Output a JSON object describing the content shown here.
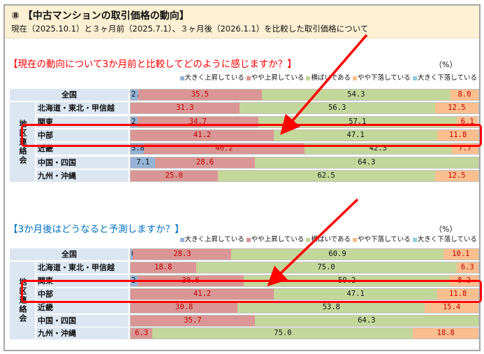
{
  "header": {
    "title": "⑧ 【中古マンションの取引価格の動向】",
    "subtitle": "現在（2025.10.1）と３ヶ月前（2025.7.1）、３ヶ月後（2026.1.1）を比較した取引価格について"
  },
  "colors": {
    "大きく上昇している": "#95b3d7",
    "やや上昇している": "#da9694",
    "横ばいである": "#c4d79b",
    "やや下落している": "#fabf8f",
    "大きく下落している": "#93cddd",
    "label_red": "#c00000",
    "highlight": "#ff0000"
  },
  "group_label": "地区連絡会",
  "chart_data": [
    {
      "type": "bar",
      "stacked": true,
      "orientation": "horizontal",
      "title": "【現在の動向について3か月前と比較してどのように感じますか？】",
      "unit": "（%）",
      "legend": [
        "大きく上昇している",
        "やや上昇している",
        "横ばいである",
        "やや下落している",
        "大きく下落している"
      ],
      "categories": [
        "全国",
        "北海道・東北・甲信越",
        "関東",
        "中部",
        "近畿",
        "中国・四国",
        "九州・沖縄"
      ],
      "values": [
        [
          2.2,
          35.5,
          54.3,
          8.0,
          0
        ],
        [
          0,
          31.3,
          56.3,
          12.5,
          0
        ],
        [
          2.0,
          34.7,
          57.1,
          6.1,
          0
        ],
        [
          0,
          41.2,
          47.1,
          11.8,
          0
        ],
        [
          3.8,
          46.2,
          42.3,
          7.7,
          0
        ],
        [
          7.1,
          28.6,
          64.3,
          0,
          0
        ],
        [
          0,
          25.0,
          62.5,
          12.5,
          0
        ]
      ],
      "highlighted": "中部",
      "xlim": [
        0,
        100
      ]
    },
    {
      "type": "bar",
      "stacked": true,
      "orientation": "horizontal",
      "title": "【3か月後はどうなると予測しますか？】",
      "unit": "（%）",
      "legend": [
        "大きく上昇している",
        "やや上昇している",
        "横ばいである",
        "やや下落している",
        "大きく下落している"
      ],
      "categories": [
        "全国",
        "北海道・東北・甲信越",
        "関東",
        "中部",
        "近畿",
        "中国・四国",
        "九州・沖縄"
      ],
      "values": [
        [
          0.7,
          28.3,
          60.9,
          10.1,
          0
        ],
        [
          0,
          18.8,
          75.0,
          6.3,
          0
        ],
        [
          2.0,
          30.6,
          59.2,
          8.2,
          0
        ],
        [
          0,
          41.2,
          47.1,
          11.8,
          0
        ],
        [
          0,
          30.8,
          53.8,
          15.4,
          0
        ],
        [
          0,
          35.7,
          64.3,
          0,
          0
        ],
        [
          0,
          6.3,
          75.0,
          18.8,
          0
        ]
      ],
      "highlighted": "中部",
      "xlim": [
        0,
        100
      ]
    }
  ]
}
